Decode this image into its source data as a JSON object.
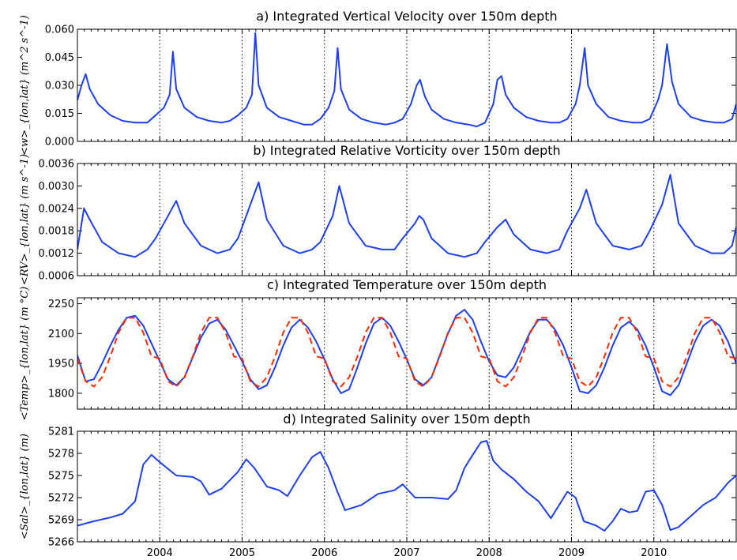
{
  "chart_data": [
    {
      "type": "line",
      "title": "a) Integrated Vertical Velocity over 150m depth",
      "ylabel": "<w>_{lon,lat} (m^2 s^-1)",
      "ylim": [
        0.0,
        0.06
      ],
      "yticks": [
        "0.000",
        "0.015",
        "0.030",
        "0.045",
        "0.060"
      ],
      "x": [
        2003.0,
        2003.05,
        2003.1,
        2003.15,
        2003.25,
        2003.4,
        2003.55,
        2003.7,
        2003.85,
        2003.95,
        2004.05,
        2004.12,
        2004.16,
        2004.2,
        2004.3,
        2004.45,
        2004.6,
        2004.75,
        2004.85,
        2004.95,
        2005.05,
        2005.12,
        2005.16,
        2005.2,
        2005.3,
        2005.45,
        2005.6,
        2005.75,
        2005.85,
        2005.95,
        2006.05,
        2006.12,
        2006.16,
        2006.2,
        2006.3,
        2006.45,
        2006.6,
        2006.75,
        2006.85,
        2006.95,
        2007.05,
        2007.12,
        2007.16,
        2007.22,
        2007.3,
        2007.45,
        2007.6,
        2007.75,
        2007.85,
        2007.95,
        2008.05,
        2008.1,
        2008.15,
        2008.2,
        2008.3,
        2008.45,
        2008.6,
        2008.75,
        2008.85,
        2008.95,
        2009.05,
        2009.1,
        2009.16,
        2009.2,
        2009.3,
        2009.45,
        2009.6,
        2009.75,
        2009.85,
        2009.95,
        2010.05,
        2010.1,
        2010.16,
        2010.22,
        2010.3,
        2010.45,
        2010.6,
        2010.75,
        2010.85,
        2010.95,
        2011.0
      ],
      "series": [
        {
          "color": "#1f3ff0",
          "values": [
            0.022,
            0.03,
            0.036,
            0.028,
            0.02,
            0.014,
            0.011,
            0.01,
            0.01,
            0.014,
            0.018,
            0.025,
            0.048,
            0.028,
            0.018,
            0.013,
            0.011,
            0.01,
            0.011,
            0.014,
            0.018,
            0.025,
            0.058,
            0.03,
            0.018,
            0.013,
            0.011,
            0.009,
            0.009,
            0.012,
            0.018,
            0.027,
            0.05,
            0.028,
            0.017,
            0.012,
            0.01,
            0.009,
            0.01,
            0.012,
            0.02,
            0.03,
            0.033,
            0.024,
            0.017,
            0.012,
            0.01,
            0.009,
            0.008,
            0.01,
            0.02,
            0.033,
            0.035,
            0.025,
            0.018,
            0.013,
            0.011,
            0.01,
            0.01,
            0.012,
            0.02,
            0.03,
            0.05,
            0.03,
            0.02,
            0.013,
            0.011,
            0.01,
            0.01,
            0.012,
            0.022,
            0.03,
            0.052,
            0.032,
            0.02,
            0.013,
            0.011,
            0.01,
            0.01,
            0.012,
            0.02
          ]
        }
      ]
    },
    {
      "type": "line",
      "title": "b) Integrated Relative Vorticity over 150m depth",
      "ylabel": "<RV>_{lon,lat} (m s^-1)",
      "ylim": [
        0.0006,
        0.0036
      ],
      "yticks": [
        "0.0006",
        "0.0012",
        "0.0018",
        "0.0024",
        "0.0030",
        "0.0036"
      ],
      "x": [
        2003.0,
        2003.08,
        2003.15,
        2003.3,
        2003.5,
        2003.7,
        2003.85,
        2003.95,
        2004.1,
        2004.2,
        2004.3,
        2004.5,
        2004.7,
        2004.85,
        2004.95,
        2005.1,
        2005.2,
        2005.3,
        2005.5,
        2005.7,
        2005.85,
        2005.95,
        2006.1,
        2006.18,
        2006.3,
        2006.5,
        2006.7,
        2006.85,
        2006.95,
        2007.1,
        2007.15,
        2007.2,
        2007.3,
        2007.5,
        2007.7,
        2007.85,
        2007.95,
        2008.1,
        2008.2,
        2008.3,
        2008.5,
        2008.7,
        2008.85,
        2008.95,
        2009.1,
        2009.18,
        2009.3,
        2009.5,
        2009.7,
        2009.85,
        2009.95,
        2010.1,
        2010.2,
        2010.3,
        2010.5,
        2010.7,
        2010.85,
        2010.95,
        2011.0
      ],
      "series": [
        {
          "color": "#1f3ff0",
          "values": [
            0.0013,
            0.0024,
            0.0021,
            0.0015,
            0.0012,
            0.0011,
            0.0013,
            0.0016,
            0.0022,
            0.0026,
            0.002,
            0.0014,
            0.0012,
            0.0013,
            0.0016,
            0.0025,
            0.0031,
            0.0021,
            0.0014,
            0.0012,
            0.0013,
            0.0015,
            0.0022,
            0.003,
            0.002,
            0.0014,
            0.0013,
            0.0013,
            0.0016,
            0.002,
            0.0022,
            0.0021,
            0.0016,
            0.0012,
            0.0011,
            0.0012,
            0.0015,
            0.0019,
            0.0021,
            0.0017,
            0.0013,
            0.0012,
            0.0013,
            0.0018,
            0.0024,
            0.0029,
            0.002,
            0.0014,
            0.0013,
            0.0014,
            0.0018,
            0.0025,
            0.0033,
            0.002,
            0.0014,
            0.0012,
            0.0012,
            0.0014,
            0.0019
          ]
        }
      ]
    },
    {
      "type": "line",
      "title": "c) Integrated Temperature over 150m depth",
      "ylabel": "<Temp>_{lon,lat} (m °C)",
      "ylim": [
        1720,
        2280
      ],
      "yticks": [
        "1800",
        "1950",
        "2100",
        "2250"
      ],
      "x": [
        2003.0,
        2003.1,
        2003.2,
        2003.3,
        2003.4,
        2003.5,
        2003.6,
        2003.7,
        2003.8,
        2003.9,
        2004.0,
        2004.1,
        2004.2,
        2004.3,
        2004.4,
        2004.5,
        2004.6,
        2004.7,
        2004.8,
        2004.9,
        2005.0,
        2005.1,
        2005.2,
        2005.3,
        2005.4,
        2005.5,
        2005.6,
        2005.7,
        2005.8,
        2005.9,
        2006.0,
        2006.1,
        2006.2,
        2006.3,
        2006.4,
        2006.5,
        2006.6,
        2006.7,
        2006.8,
        2006.9,
        2007.0,
        2007.1,
        2007.2,
        2007.3,
        2007.4,
        2007.5,
        2007.6,
        2007.7,
        2007.8,
        2007.9,
        2008.0,
        2008.1,
        2008.2,
        2008.3,
        2008.4,
        2008.5,
        2008.6,
        2008.7,
        2008.8,
        2008.9,
        2009.0,
        2009.1,
        2009.2,
        2009.3,
        2009.4,
        2009.5,
        2009.6,
        2009.7,
        2009.8,
        2009.9,
        2010.0,
        2010.1,
        2010.2,
        2010.3,
        2010.4,
        2010.5,
        2010.6,
        2010.7,
        2010.8,
        2010.9,
        2011.0
      ],
      "series": [
        {
          "color": "#1f3ff0",
          "style": "solid",
          "values": [
            1990,
            1860,
            1870,
            1950,
            2040,
            2120,
            2180,
            2190,
            2140,
            2050,
            1960,
            1870,
            1840,
            1880,
            1980,
            2080,
            2150,
            2170,
            2120,
            2040,
            1960,
            1870,
            1820,
            1840,
            1930,
            2040,
            2130,
            2170,
            2130,
            2060,
            1970,
            1870,
            1800,
            1820,
            1930,
            2050,
            2150,
            2180,
            2140,
            2060,
            1970,
            1870,
            1840,
            1880,
            1990,
            2100,
            2190,
            2220,
            2170,
            2060,
            1960,
            1890,
            1880,
            1930,
            2020,
            2110,
            2170,
            2170,
            2120,
            2040,
            1930,
            1810,
            1800,
            1840,
            1930,
            2040,
            2130,
            2160,
            2120,
            2040,
            1930,
            1810,
            1790,
            1840,
            1950,
            2060,
            2140,
            2170,
            2140,
            2060,
            1950
          ]
        },
        {
          "color": "#ff2a00",
          "style": "dashed",
          "values": [
            1975,
            1860,
            1833,
            1880,
            1985,
            2105,
            2180,
            2180,
            2105,
            1985,
            1975,
            1860,
            1833,
            1880,
            1985,
            2105,
            2180,
            2180,
            2105,
            1985,
            1975,
            1860,
            1833,
            1880,
            1985,
            2105,
            2180,
            2180,
            2105,
            1985,
            1975,
            1860,
            1833,
            1880,
            1985,
            2105,
            2180,
            2180,
            2105,
            1985,
            1975,
            1860,
            1833,
            1880,
            1985,
            2105,
            2180,
            2180,
            2105,
            1985,
            1975,
            1860,
            1833,
            1880,
            1985,
            2105,
            2180,
            2180,
            2105,
            1985,
            1975,
            1860,
            1833,
            1880,
            1985,
            2105,
            2180,
            2180,
            2105,
            1985,
            1975,
            1860,
            1833,
            1880,
            1985,
            2105,
            2180,
            2180,
            2105,
            1985,
            1975
          ]
        }
      ]
    },
    {
      "type": "line",
      "title": "d) Integrated Salinity over 150m depth",
      "ylabel": "<Sal>_{lon,lat} (m)",
      "ylim": [
        5266,
        5281
      ],
      "yticks": [
        "5266",
        "5269",
        "5272",
        "5275",
        "5278",
        "5281"
      ],
      "xticks": [
        "2004",
        "2005",
        "2006",
        "2007",
        "2008",
        "2009",
        "2010"
      ],
      "x": [
        2003.0,
        2003.2,
        2003.4,
        2003.55,
        2003.7,
        2003.8,
        2003.9,
        2004.0,
        2004.2,
        2004.4,
        2004.5,
        2004.6,
        2004.75,
        2004.95,
        2005.05,
        2005.15,
        2005.3,
        2005.45,
        2005.55,
        2005.7,
        2005.85,
        2005.95,
        2006.05,
        2006.15,
        2006.25,
        2006.45,
        2006.65,
        2006.85,
        2006.95,
        2007.1,
        2007.3,
        2007.5,
        2007.6,
        2007.7,
        2007.8,
        2007.9,
        2007.97,
        2008.05,
        2008.15,
        2008.3,
        2008.45,
        2008.6,
        2008.75,
        2008.85,
        2008.95,
        2009.05,
        2009.15,
        2009.3,
        2009.4,
        2009.5,
        2009.6,
        2009.7,
        2009.8,
        2009.9,
        2010.0,
        2010.1,
        2010.2,
        2010.3,
        2010.45,
        2010.6,
        2010.75,
        2010.9,
        2011.0
      ],
      "series": [
        {
          "color": "#1f3ff0",
          "values": [
            5268.2,
            5268.8,
            5269.3,
            5269.8,
            5271.5,
            5276.5,
            5277.8,
            5276.8,
            5275.0,
            5274.8,
            5274.2,
            5272.4,
            5273.2,
            5275.5,
            5277.2,
            5276.0,
            5273.5,
            5273.0,
            5272.2,
            5275.0,
            5277.5,
            5278.2,
            5276.0,
            5273.0,
            5270.3,
            5271.0,
            5272.5,
            5273.0,
            5273.8,
            5272.0,
            5272.0,
            5271.8,
            5273.0,
            5276.0,
            5277.8,
            5279.5,
            5279.7,
            5277.0,
            5275.8,
            5274.5,
            5272.8,
            5271.5,
            5269.2,
            5271.0,
            5272.8,
            5272.0,
            5268.8,
            5268.2,
            5267.5,
            5268.8,
            5270.5,
            5270.0,
            5270.2,
            5272.8,
            5273.0,
            5271.0,
            5267.6,
            5268.0,
            5269.5,
            5271.0,
            5272.0,
            5274.0,
            5275.0
          ]
        }
      ]
    }
  ]
}
